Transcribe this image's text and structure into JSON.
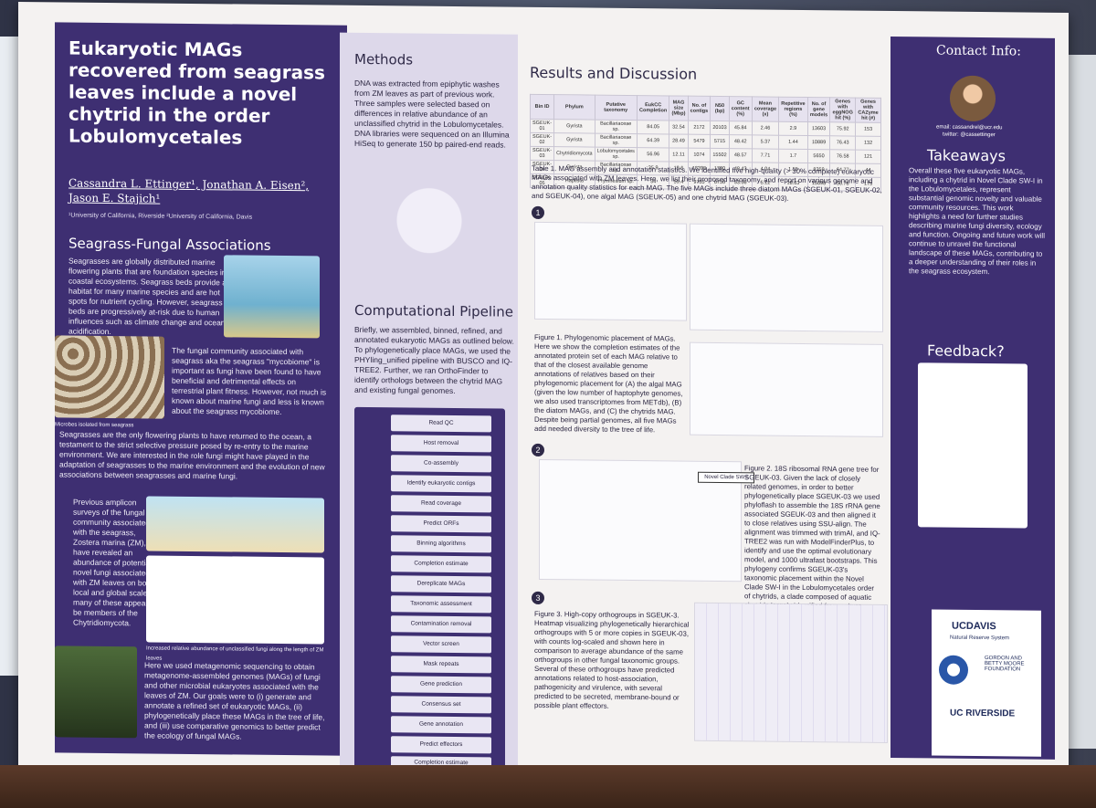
{
  "poster": {
    "title": "Eukaryotic MAGs recovered from seagrass leaves include a novel chytrid in the order Lobulomycetales",
    "authors": "Cassandra L. Ettinger¹, Jonathan A. Eisen², Jason E. Stajich¹",
    "affiliations": "¹University of California, Riverside ²University of California, Davis",
    "sections": {
      "seagrass_fungal": {
        "heading": "Seagrass-Fungal Associations",
        "p1": "Seagrasses are globally distributed marine flowering plants that are foundation species in coastal ecosystems. Seagrass beds provide a habitat for many marine species and are hot spots for nutrient cycling. However, seagrass beds are progressively at-risk due to human influences such as climate change and ocean acidification.",
        "p2": "The fungal community associated with seagrass aka the seagrass \"mycobiome\" is important as fungi have been found to have beneficial and detrimental effects on terrestrial plant fitness. However, not much is known about marine fungi and less is known about the seagrass mycobiome.",
        "p3": "Seagrasses are the only flowering plants to have returned to the ocean, a testament to the strict selective pressure posed by re-entry to the marine environment. We are interested in the role fungi might have played in the adaptation of seagrasses to the marine environment and the evolution of new associations between seagrasses and marine fungi.",
        "p4": "Previous amplicon surveys of the fungal community associated with the seagrass, Zostera marina (ZM), have revealed an abundance of potentially novel fungi associated with ZM leaves on both a local and global scale, many of these appear to be members of the Chytridiomycota.",
        "p5": "Here we used metagenomic sequencing to obtain metagenome-assembled genomes (MAGs) of fungi and other microbial eukaryotes associated with the leaves of ZM. Our goals were to (i) generate and annotate a refined set of eukaryotic MAGs, (ii) phylogenetically place these MAGs in the tree of life, and (iii) use comparative genomics to better predict the ecology of fungal MAGs.",
        "microbes_caption": "Microbes isolated from seagrass",
        "bar_caption": "Increased relative abundance of unclassified fungi along the length of ZM leaves"
      },
      "methods": {
        "heading": "Methods",
        "text": "DNA was extracted from epiphytic washes from ZM leaves as part of previous work. Three samples were selected based on differences in relative abundance of an unclassified chytrid in the Lobulomycetales. DNA libraries were sequenced on an Illumina HiSeq to generate 150 bp paired-end reads."
      },
      "pipeline": {
        "heading": "Computational Pipeline",
        "text": "Briefly, we assembled, binned, refined, and annotated eukaryotic MAGs as outlined below. To phylogenetically place MAGs, we used the PHYling_unified pipeline with BUSCO and IQ-TREE2. Further, we ran OrthoFinder to identify orthologs between the chytrid MAG and existing fungal genomes.",
        "steps": [
          "Read QC",
          "Host removal",
          "Co-assembly",
          "Identify eukaryotic contigs",
          "Read coverage",
          "Predict ORFs",
          "Binning algorithms",
          "Completion estimate",
          "Dereplicate MAGs",
          "Taxonomic assessment",
          "Contamination removal",
          "Vector screen",
          "Mask repeats",
          "Gene prediction",
          "Consensus set",
          "Gene annotation",
          "Predict effectors",
          "Completion estimate"
        ]
      },
      "results": {
        "heading": "Results and Discussion",
        "table_headers": [
          "Bin ID",
          "Phylum",
          "Putative taxonomy",
          "EukCC Completion",
          "MAG size (Mbp)",
          "No. of contigs",
          "N50 (bp)",
          "GC content (%)",
          "Mean coverage (x)",
          "Repetitive regions (%)",
          "No. of gene models",
          "Genes with eggNOG hit (%)",
          "Genes with CAZyme hit (#)"
        ],
        "table_rows": [
          [
            "SGEUK-01",
            "Gyrista",
            "Bacillariaceae sp.",
            "84.05",
            "32.54",
            "2172",
            "20103",
            "45.84",
            "2.46",
            "2.9",
            "13603",
            "75.92",
            "153"
          ],
          [
            "SGEUK-02",
            "Gyrista",
            "Bacillariaceae sp.",
            "64.39",
            "28.49",
            "5479",
            "5715",
            "48.42",
            "5.37",
            "1.44",
            "10889",
            "76.43",
            "132"
          ],
          [
            "SGEUK-03",
            "Chytridiomycota",
            "Lobulomycetales sp.",
            "56.96",
            "12.11",
            "1074",
            "15502",
            "48.57",
            "7.71",
            "1.7",
            "5650",
            "76.58",
            "121"
          ],
          [
            "SGEUK-04",
            "Gyrista",
            "Bacillariaceae sp.",
            "35.9",
            "19.6",
            "13398",
            "1790",
            "48.43",
            "4.04",
            "1.55",
            "8359",
            "64.77",
            "44"
          ],
          [
            "SGEUK-05",
            "Haptista",
            "Prymnesium sp.",
            "34",
            "59.4",
            "9735",
            "6756",
            "53.36",
            "5.12",
            "18.63",
            "15098",
            "56.78",
            "175"
          ]
        ],
        "table1_caption": "Table 1. MAG assembly and annotation statistics. We identified five high-quality (> 30% complete) eukaryotic MAGs associated with ZM leaves. Here, we list their proposed taxonomy, and report on various genome and annotation quality statistics for each MAG. The five MAGs include three diatom MAGs (SGEUK-01, SGEUK-02, and SGEUK-04), one algal MAG (SGEUK-05) and one chytrid MAG (SGEUK-03).",
        "fig1_caption": "Figure 1. Phylogenomic placement of MAGs. Here we show the completion estimates of the annotated protein set of each MAG relative to that of the closest available genome annotations of relatives based on their phylogenomic placement for (A) the algal MAG (given the low number of haptophyte genomes, we also used transcriptomes from METdb), (B) the diatom MAGs, and (C) the chytrids MAG. Despite being partial genomes, all five MAGs add needed diversity to the tree of life.",
        "fig2_caption": "Figure 2. 18S ribosomal RNA gene tree for SGEUK-03. Given the lack of closely related genomes, in order to better phylogenetically place SGEUK-03 we used phyloflash to assemble the 18S rRNA gene associated SGEUK-03 and then aligned it to close relatives using SSU-align. The alignment was trimmed with trimAl, and IQ-TREE2 was run with ModelFinderPlus, to identify and use the optimal evolutionary model, and 1000 ultrafast bootstraps. This phylogeny confirms SGEUK-03's taxonomic placement within the Novel Clade SW-I in the Lobulomycetales order of chytrids, a clade composed of aquatic chytrids largely identified from culture-independent surveys of marine ecosystems.",
        "fig3_caption": "Figure 3. High-copy orthogroups in SGEUK-3. Heatmap visualizing phylogenetically hierarchical orthogroups with 5 or more copies in SGEUK-03, with counts log-scaled and shown here in comparison to average abundance of the same orthogroups in other fungal taxonomic groups. Several of these orthogroups have predicted annotations related to host-association, pathogenicity and virulence, with several predicted to be secreted, membrane-bound or possible plant effectors.",
        "clade_label": "Novel Clade SW-I"
      },
      "contact": {
        "heading": "Contact Info:",
        "email": "email: cassandrel@ucr.edu",
        "twitter": "twitter: @cassettinger"
      },
      "takeaways": {
        "heading": "Takeaways",
        "text": "Overall these five eukaryotic MAGs, including a chytrid in Novel Clade SW-I in the Lobulomycetales, represent substantial genomic novelty and valuable community resources. This work highlights a need for further studies describing marine fungi diversity, ecology and function. Ongoing and future work will continue to unravel the functional landscape of these MAGs, contributing to a deeper understanding of their roles in the seagrass ecosystem."
      },
      "feedback": {
        "heading": "Feedback?"
      },
      "logos": [
        "UCDAVIS",
        "Natural Reserve System",
        "GORDON AND BETTY MOORE FOUNDATION",
        "UC RIVERSIDE"
      ]
    }
  },
  "colors": {
    "primary": "#3e2f72",
    "lavender": "#ddd8ea",
    "paper": "#f4f2f1"
  }
}
